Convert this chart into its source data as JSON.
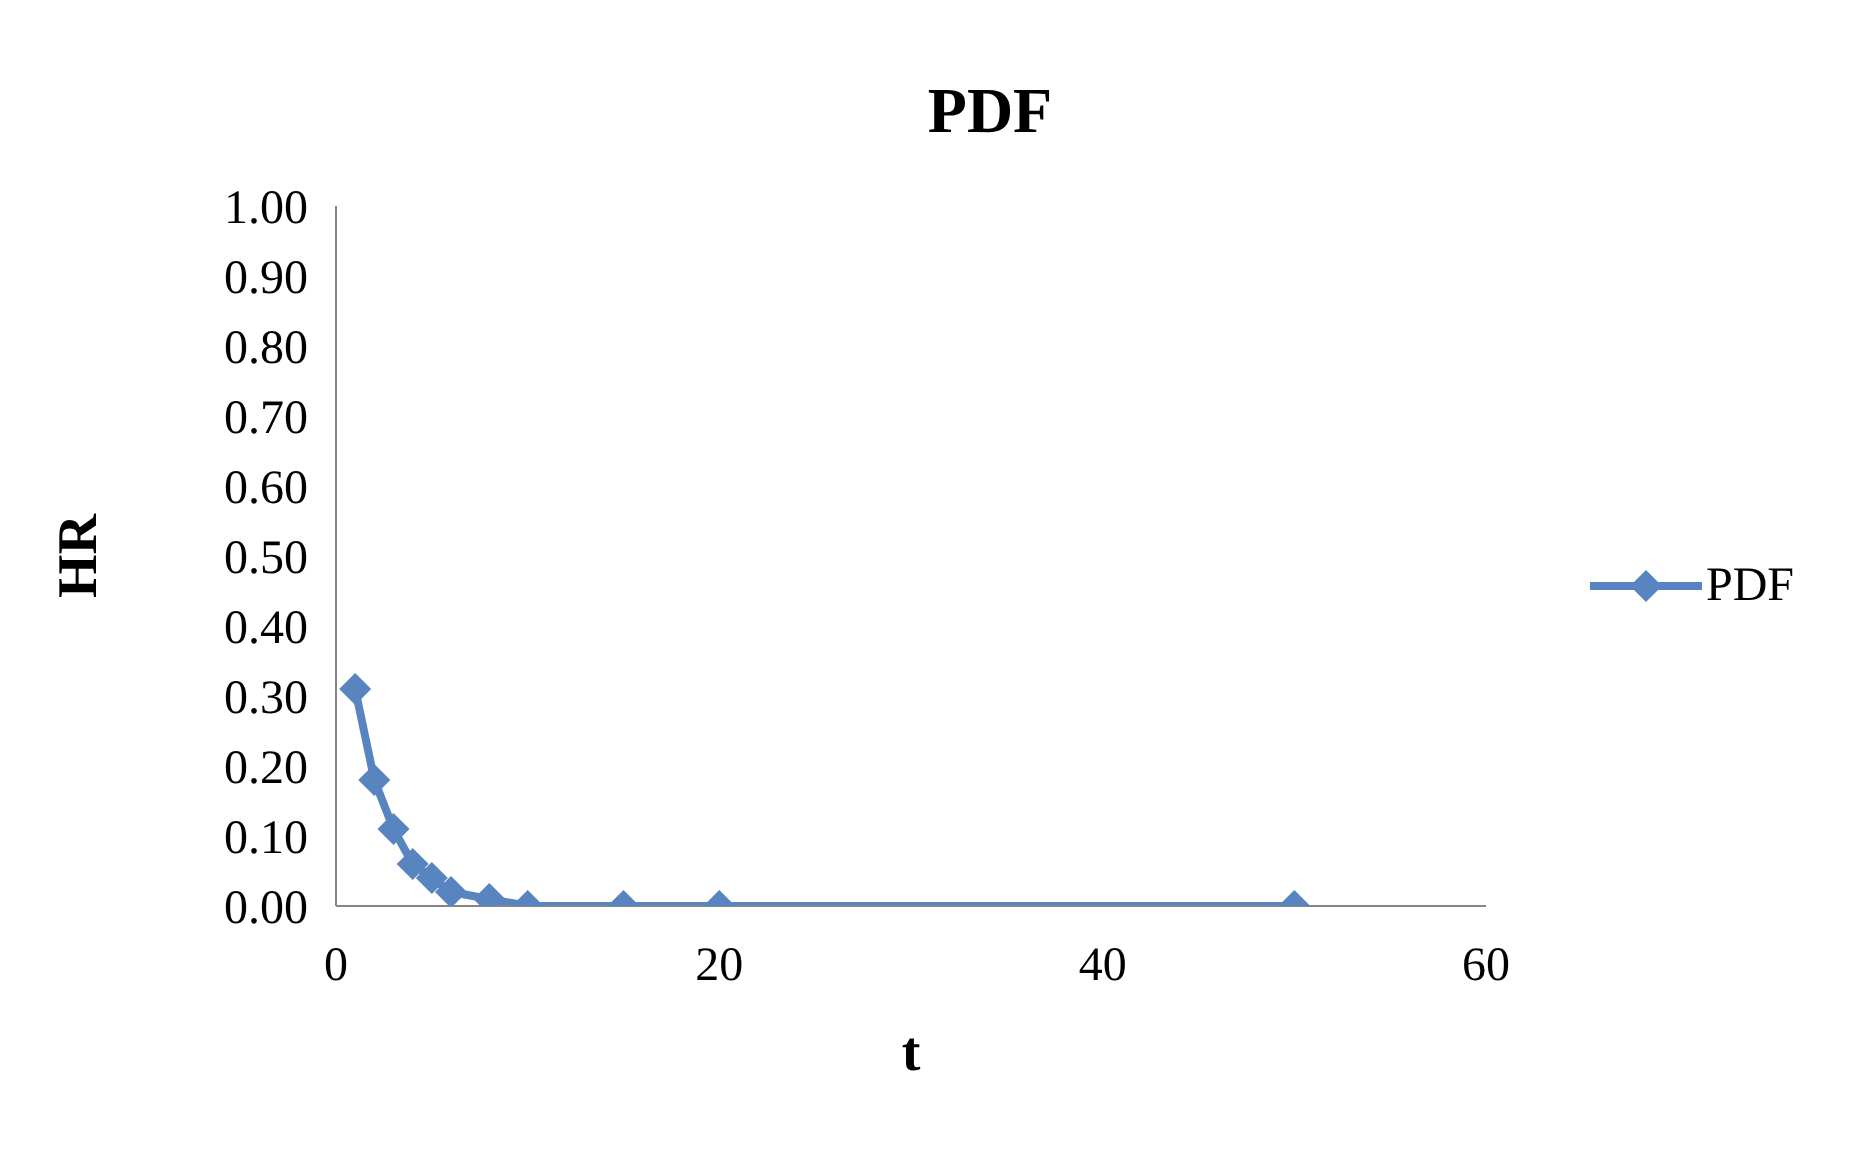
{
  "chart_data": {
    "type": "line",
    "title": "PDF",
    "xlabel": "t",
    "ylabel": "HR",
    "x": [
      1,
      2,
      3,
      4,
      5,
      6,
      8,
      10,
      15,
      20,
      50
    ],
    "series": [
      {
        "name": "PDF",
        "color": "#5884bf",
        "values": [
          0.31,
          0.18,
          0.11,
          0.06,
          0.04,
          0.02,
          0.01,
          0.0,
          0.0,
          0.0,
          0.0
        ]
      }
    ],
    "xlim": [
      0,
      60
    ],
    "xticks": [
      0,
      20,
      40,
      60
    ],
    "ylim": [
      0,
      1
    ],
    "yticks": [
      {
        "value": 0,
        "label": "0.00"
      },
      {
        "value": 0.1,
        "label": "0.10"
      },
      {
        "value": 0.2,
        "label": "0.20"
      },
      {
        "value": 0.3,
        "label": "0.30"
      },
      {
        "value": 0.4,
        "label": "0.40"
      },
      {
        "value": 0.5,
        "label": "0.50"
      },
      {
        "value": 0.6,
        "label": "0.60"
      },
      {
        "value": 0.7,
        "label": "0.70"
      },
      {
        "value": 0.8,
        "label": "0.80"
      },
      {
        "value": 0.9,
        "label": "0.90"
      },
      {
        "value": 1,
        "label": "1.00"
      }
    ],
    "grid": false,
    "legend": "right",
    "marker": "diamond",
    "line_style": "solid"
  }
}
